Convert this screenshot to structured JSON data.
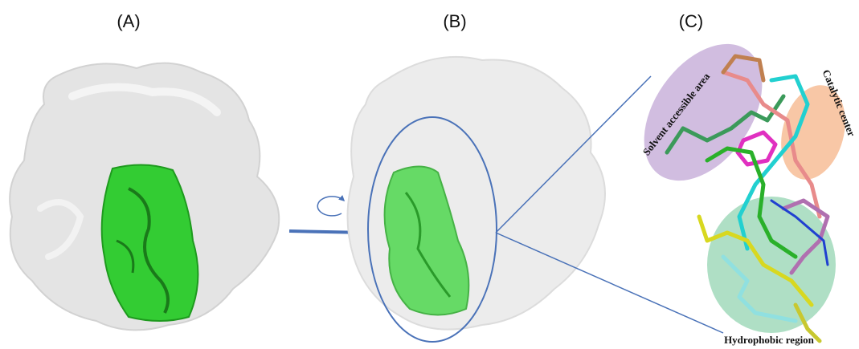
{
  "panels": [
    {
      "label": "(A)"
    },
    {
      "label": "(B)"
    },
    {
      "label": "(C)"
    }
  ],
  "regions": [
    {
      "label": "Solvent accessible area"
    },
    {
      "label": "Catalytic center"
    },
    {
      "label": "Hydrophobic region"
    }
  ]
}
